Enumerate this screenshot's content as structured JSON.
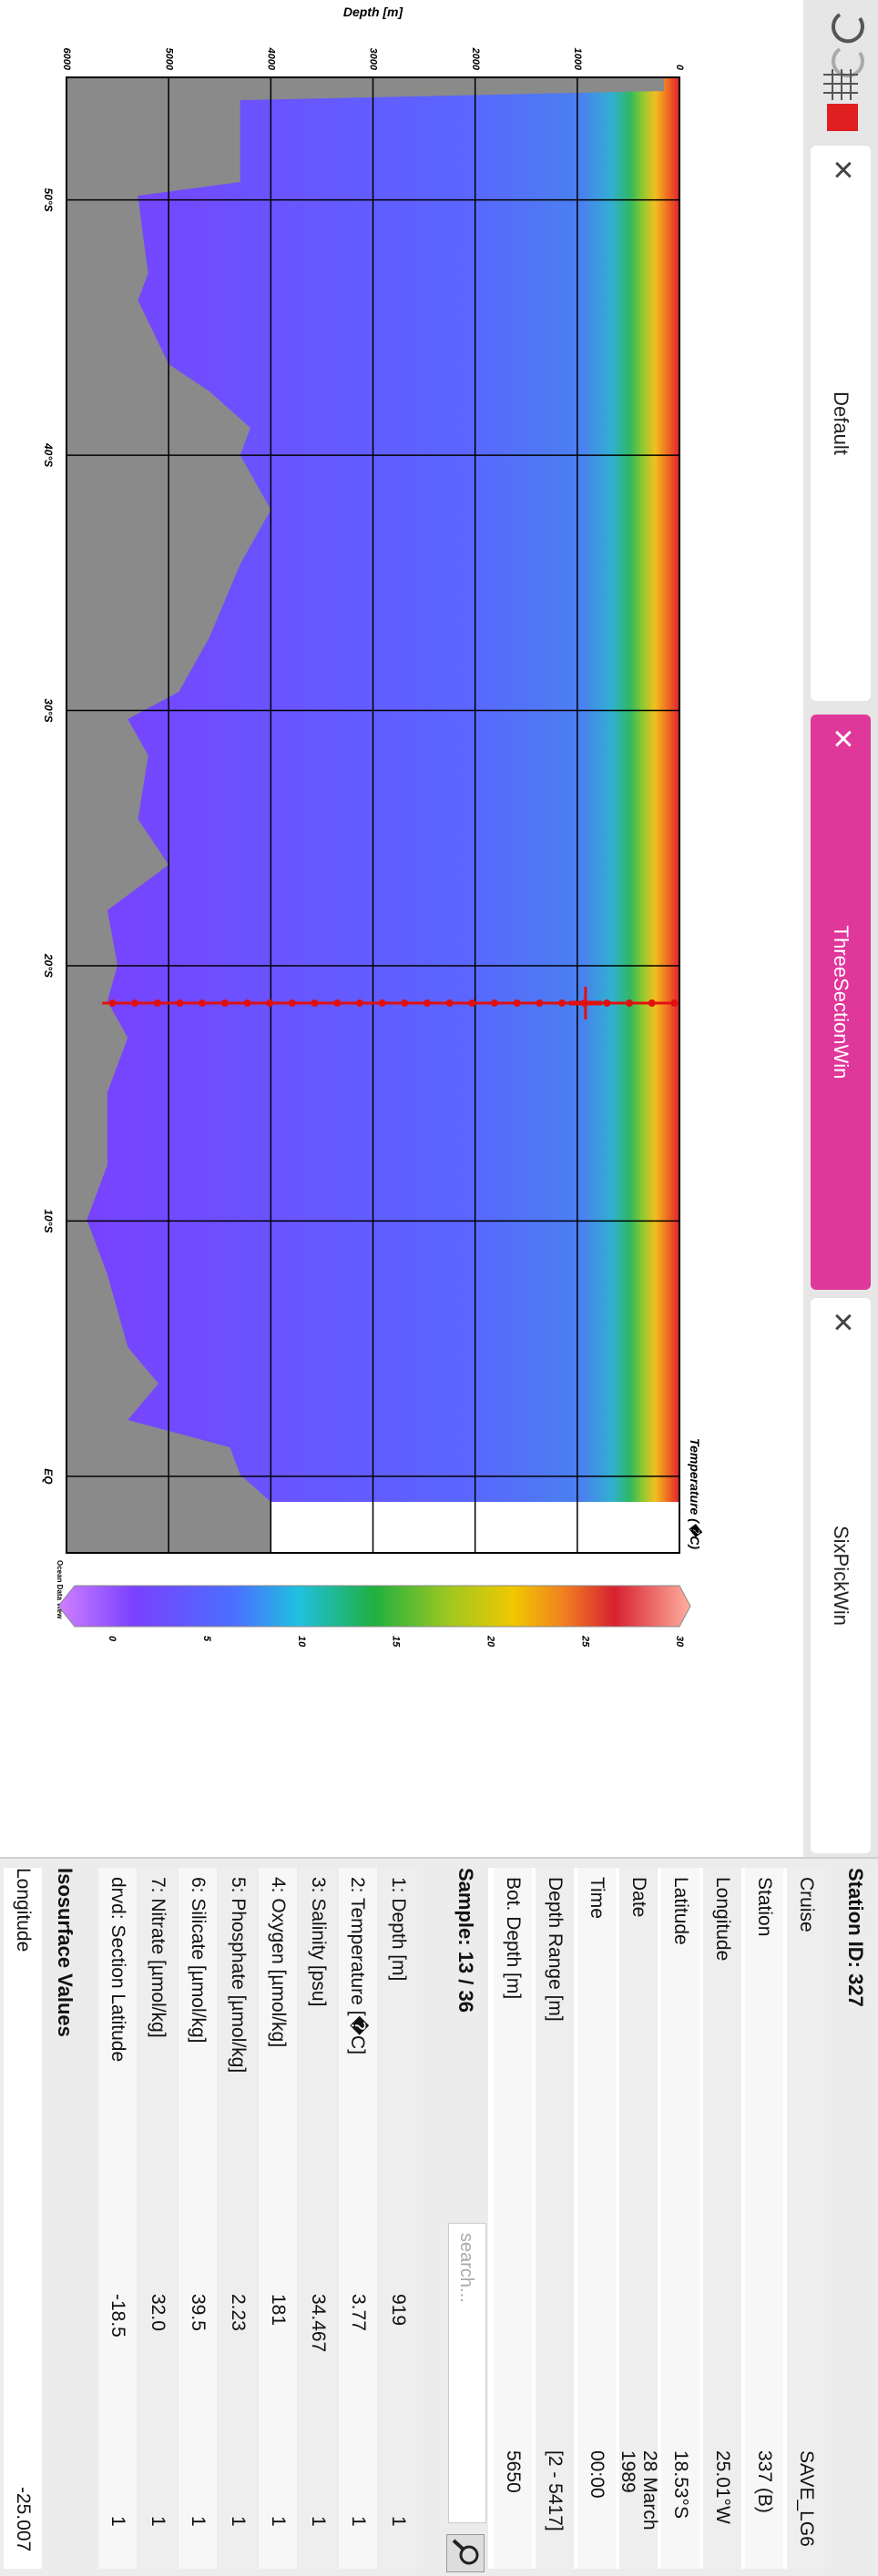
{
  "toolbar": {
    "tabs": [
      {
        "label": "Default"
      },
      {
        "label": "ThreeSectionWin"
      },
      {
        "label": "SixPickWin"
      }
    ]
  },
  "chart_data": {
    "type": "section",
    "title": "Temperature (�C)",
    "ylabel": "Depth [m]",
    "ylim": [
      0,
      6000
    ],
    "yticks": [
      0,
      1000,
      2000,
      3000,
      4000,
      5000,
      6000
    ],
    "xlim": [
      -54.8,
      3.0
    ],
    "xticks": [
      {
        "value": -50,
        "label": "50°S"
      },
      {
        "value": -40,
        "label": "40°S"
      },
      {
        "value": -30,
        "label": "30°S"
      },
      {
        "value": -20,
        "label": "20°S"
      },
      {
        "value": -10,
        "label": "10°S"
      },
      {
        "value": 0,
        "label": "EQ"
      }
    ],
    "colorbar": {
      "lim": [
        0,
        30
      ],
      "ticks": [
        0,
        5,
        10,
        15,
        20,
        25,
        30
      ]
    },
    "credit": "Ocean Data View",
    "grid": true
  },
  "station": {
    "title": "Station ID: 327",
    "rows": [
      [
        "Cruise",
        "SAVE_LG6"
      ],
      [
        "Station",
        "337 (B)"
      ],
      [
        "Longitude",
        "25.01°W"
      ],
      [
        "Latitude",
        "18.53°S"
      ],
      [
        "Date",
        "28 March 1989"
      ],
      [
        "Time",
        "00:00"
      ],
      [
        "Depth Range [m]",
        "[2 - 5417]"
      ],
      [
        "Bot. Depth [m]",
        "5650"
      ]
    ]
  },
  "sample": {
    "title": "Sample: 13 / 36",
    "search_placeholder": "search...",
    "rows": [
      [
        "1: Depth [m]",
        "919",
        "1"
      ],
      [
        "2: Temperature [�C]",
        "3.77",
        "1"
      ],
      [
        "3: Salinity [psu]",
        "34.467",
        "1"
      ],
      [
        "4: Oxygen [µmol/kg]",
        "181",
        "1"
      ],
      [
        "5: Phosphate [µmol/kg]",
        "2.23",
        "1"
      ],
      [
        "6: Silicate [µmol/kg]",
        "39.5",
        "1"
      ],
      [
        "7: Nitrate [µmol/kg]",
        "32.0",
        "1"
      ],
      [
        "drvd: Section Latitude",
        "-18.5",
        "1"
      ]
    ]
  },
  "isosurface": {
    "title": "Isosurface Values",
    "rows": [
      [
        "Longitude",
        "-25.007"
      ]
    ]
  }
}
